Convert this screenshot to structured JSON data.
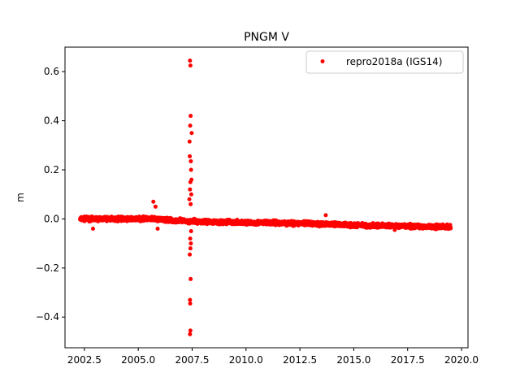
{
  "chart_data": {
    "type": "scatter",
    "title": "PNGM V",
    "xlabel": "",
    "ylabel": "m",
    "xlim": [
      2001.6,
      2020.3
    ],
    "ylim": [
      -0.525,
      0.7
    ],
    "x_ticks": [
      2002.5,
      2005.0,
      2007.5,
      2010.0,
      2012.5,
      2015.0,
      2017.5,
      2020.0
    ],
    "x_tick_labels": [
      "2002.5",
      "2005.0",
      "2007.5",
      "2010.0",
      "2012.5",
      "2015.0",
      "2017.5",
      "2020.0"
    ],
    "y_ticks": [
      -0.4,
      -0.2,
      0.0,
      0.2,
      0.4,
      0.6
    ],
    "y_tick_labels": [
      "−0.4",
      "−0.2",
      "0.0",
      "0.2",
      "0.4",
      "0.6"
    ],
    "grid": false,
    "legend_position": "top-right",
    "series": [
      {
        "name": "repro2018a (IGS14)",
        "color": "#ff0000",
        "marker": "circle",
        "trend": {
          "x_start": 2002.3,
          "x_end": 2019.5,
          "knots": [
            [
              2002.3,
              0.0
            ],
            [
              2005.0,
              0.0
            ],
            [
              2005.5,
              0.0
            ],
            [
              2007.4,
              -0.01
            ],
            [
              2010.0,
              -0.015
            ],
            [
              2012.5,
              -0.018
            ],
            [
              2015.0,
              -0.025
            ],
            [
              2017.5,
              -0.03
            ],
            [
              2019.5,
              -0.032
            ]
          ],
          "scatter_amplitude": 0.012
        },
        "points": [
          [
            2002.9,
            -0.04
          ],
          [
            2005.7,
            0.07
          ],
          [
            2005.8,
            0.05
          ],
          [
            2005.9,
            -0.04
          ],
          [
            2007.4,
            0.645
          ],
          [
            2007.42,
            0.625
          ],
          [
            2007.43,
            0.42
          ],
          [
            2007.41,
            0.38
          ],
          [
            2007.48,
            0.35
          ],
          [
            2007.38,
            0.315
          ],
          [
            2007.39,
            0.255
          ],
          [
            2007.44,
            0.235
          ],
          [
            2007.45,
            0.2
          ],
          [
            2007.42,
            0.15
          ],
          [
            2007.47,
            0.16
          ],
          [
            2007.4,
            0.12
          ],
          [
            2007.46,
            0.1
          ],
          [
            2007.37,
            0.08
          ],
          [
            2007.43,
            0.06
          ],
          [
            2007.45,
            -0.05
          ],
          [
            2007.41,
            -0.08
          ],
          [
            2007.44,
            -0.1
          ],
          [
            2007.42,
            -0.12
          ],
          [
            2007.39,
            -0.145
          ],
          [
            2007.43,
            -0.245
          ],
          [
            2007.4,
            -0.33
          ],
          [
            2007.41,
            -0.345
          ],
          [
            2007.42,
            -0.455
          ],
          [
            2007.4,
            -0.47
          ],
          [
            2013.7,
            0.015
          ],
          [
            2016.9,
            -0.045
          ]
        ]
      }
    ]
  }
}
